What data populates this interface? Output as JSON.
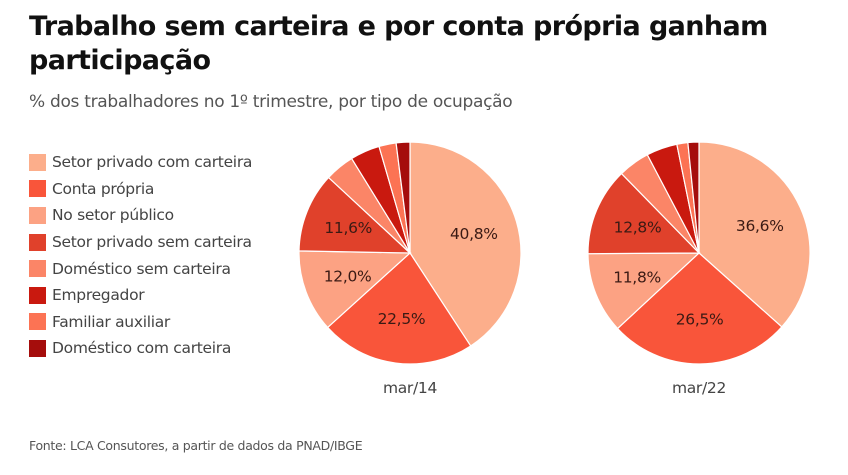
{
  "header": {
    "title": "Trabalho sem carteira e por conta própria ganham participação",
    "subtitle": "% dos trabalhadores no 1º trimestre, por tipo de ocupação"
  },
  "footer": {
    "source": "Fonte: LCA Consutores, a partir de dados da PNAD/IBGE"
  },
  "chart_data": {
    "type": "pie",
    "title": "Trabalho sem carteira e por conta própria ganham participação",
    "subtitle": "% dos trabalhadores no 1º trimestre, por tipo de ocupação",
    "legend_position": "left",
    "categories": [
      "Setor privado com carteira",
      "Conta própria",
      "No setor público",
      "Setor privado sem carteira",
      "Doméstico sem carteira",
      "Empregador",
      "Familiar auxiliar",
      "Doméstico com carteira"
    ],
    "colors": [
      "#fcae8b",
      "#f9553a",
      "#fca283",
      "#e0412b",
      "#fb8567",
      "#c9190f",
      "#fc7354",
      "#a50d0c"
    ],
    "series": [
      {
        "name": "mar/14",
        "values": [
          40.8,
          22.5,
          12.0,
          11.6,
          4.3,
          4.3,
          2.5,
          2.0
        ],
        "labels": [
          "40,8%",
          "22,5%",
          "12,0%",
          "11,6%",
          "",
          "",
          "",
          ""
        ]
      },
      {
        "name": "mar/22",
        "values": [
          36.6,
          26.5,
          11.8,
          12.8,
          4.6,
          4.5,
          1.6,
          1.6
        ],
        "labels": [
          "36,6%",
          "26,5%",
          "11,8%",
          "12,8%",
          "",
          "",
          "",
          ""
        ]
      }
    ]
  }
}
